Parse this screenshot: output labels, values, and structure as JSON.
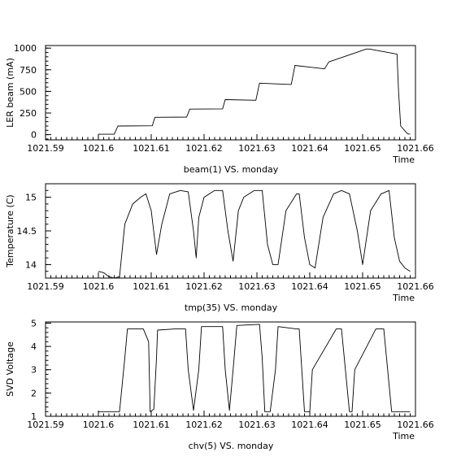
{
  "chart_data": [
    {
      "type": "line",
      "ylabel": "LER beam (mA)",
      "xlabel": "beam(1) VS. monday",
      "xlabel_right": "Time",
      "xlim": [
        1021.59,
        1021.66
      ],
      "ylim": [
        -60,
        1030
      ],
      "xticks": [
        1021.59,
        1021.6,
        1021.61,
        1021.62,
        1021.63,
        1021.64,
        1021.65,
        1021.66
      ],
      "xtick_labels": [
        "1021.59",
        "1021.6",
        "1021.61",
        "1021.62",
        "1021.63",
        "1021.64",
        "1021.65",
        "1021.66"
      ],
      "yticks": [
        0,
        250,
        500,
        750,
        1000
      ],
      "ytick_labels": [
        "0",
        "250",
        "500",
        "750",
        "1000"
      ],
      "series": [
        {
          "x": [
            1021.6,
            1021.603,
            1021.6037,
            1021.6102,
            1021.6107,
            1021.6167,
            1021.6173,
            1021.6235,
            1021.624,
            1021.6298,
            1021.6305,
            1021.6365,
            1021.6372,
            1021.6428,
            1021.6436,
            1021.6507,
            1021.6513,
            1021.6565,
            1021.6568,
            1021.6572,
            1021.6585,
            1021.659
          ],
          "y": [
            5,
            5,
            100,
            103,
            200,
            203,
            295,
            298,
            405,
            398,
            595,
            580,
            800,
            760,
            840,
            990,
            990,
            930,
            500,
            100,
            10,
            5
          ]
        }
      ]
    },
    {
      "type": "line",
      "ylabel": "Temperature (C)",
      "xlabel": "tmp(35) VS. monday",
      "xlabel_right": "Time",
      "xlim": [
        1021.59,
        1021.66
      ],
      "ylim": [
        13.8,
        15.2
      ],
      "xticks": [
        1021.59,
        1021.6,
        1021.61,
        1021.62,
        1021.63,
        1021.64,
        1021.65,
        1021.66
      ],
      "xtick_labels": [
        "1021.59",
        "1021.6",
        "1021.61",
        "1021.62",
        "1021.63",
        "1021.64",
        "1021.65",
        "1021.66"
      ],
      "yticks": [
        14,
        14.5,
        15
      ],
      "ytick_labels": [
        "14",
        "14.5",
        "15"
      ],
      "series": [
        {
          "x": [
            1021.6,
            1021.601,
            1021.602,
            1021.603,
            1021.604,
            1021.605,
            1021.6065,
            1021.608,
            1021.609,
            1021.61,
            1021.611,
            1021.612,
            1021.6135,
            1021.6155,
            1021.617,
            1021.618,
            1021.6185,
            1021.619,
            1021.62,
            1021.622,
            1021.6235,
            1021.6245,
            1021.6255,
            1021.6265,
            1021.6275,
            1021.6295,
            1021.631,
            1021.632,
            1021.633,
            1021.634,
            1021.6355,
            1021.6375,
            1021.638,
            1021.639,
            1021.64,
            1021.641,
            1021.6425,
            1021.6445,
            1021.646,
            1021.6475,
            1021.649,
            1021.65,
            1021.6515,
            1021.6535,
            1021.655,
            1021.656,
            1021.657,
            1021.658,
            1021.659
          ],
          "y": [
            13.9,
            13.88,
            13.82,
            13.8,
            13.82,
            14.6,
            14.9,
            15.0,
            15.05,
            14.8,
            14.15,
            14.6,
            15.05,
            15.1,
            15.08,
            14.5,
            14.1,
            14.7,
            15.0,
            15.1,
            15.1,
            14.5,
            14.05,
            14.8,
            15.0,
            15.1,
            15.1,
            14.3,
            14.0,
            14.0,
            14.8,
            15.05,
            15.05,
            14.4,
            14.0,
            13.95,
            14.7,
            15.05,
            15.1,
            15.05,
            14.5,
            14.0,
            14.8,
            15.05,
            15.1,
            14.4,
            14.05,
            13.95,
            13.9
          ]
        }
      ]
    },
    {
      "type": "line",
      "ylabel": "SVD Voltage",
      "xlabel": "chv(5) VS. monday",
      "xlabel_right": "Time",
      "xlim": [
        1021.59,
        1021.66
      ],
      "ylim": [
        1,
        5.05
      ],
      "xticks": [
        1021.59,
        1021.6,
        1021.61,
        1021.62,
        1021.63,
        1021.64,
        1021.65,
        1021.66
      ],
      "xtick_labels": [
        "1021.59",
        "1021.6",
        "1021.61",
        "1021.62",
        "1021.63",
        "1021.64",
        "1021.65",
        "1021.66"
      ],
      "yticks": [
        1,
        2,
        3,
        4,
        5
      ],
      "ytick_labels": [
        "1",
        "2",
        "3",
        "4",
        "5"
      ],
      "series": [
        {
          "x": [
            1021.6,
            1021.604,
            1021.605,
            1021.6055,
            1021.6085,
            1021.6095,
            1021.6098,
            1021.6105,
            1021.611,
            1021.6112,
            1021.6145,
            1021.6165,
            1021.617,
            1021.618,
            1021.619,
            1021.6195,
            1021.6225,
            1021.6235,
            1021.624,
            1021.6248,
            1021.6255,
            1021.6262,
            1021.6305,
            1021.631,
            1021.6315,
            1021.6325,
            1021.6335,
            1021.634,
            1021.6375,
            1021.638,
            1021.639,
            1021.64,
            1021.6405,
            1021.645,
            1021.6455,
            1021.646,
            1021.6475,
            1021.648,
            1021.6485,
            1021.6525,
            1021.6535,
            1021.654,
            1021.6555,
            1021.659
          ],
          "y": [
            1.2,
            1.2,
            3.5,
            4.75,
            4.75,
            4.2,
            1.2,
            1.3,
            3.5,
            4.7,
            4.75,
            4.75,
            3.0,
            1.25,
            3.0,
            4.85,
            4.85,
            4.85,
            3.0,
            1.25,
            3.0,
            4.9,
            4.95,
            3.5,
            1.2,
            1.2,
            3.0,
            4.85,
            4.75,
            4.75,
            1.2,
            1.2,
            3.0,
            4.75,
            4.75,
            4.75,
            1.2,
            1.2,
            3.0,
            4.75,
            4.75,
            4.75,
            1.2,
            1.2
          ]
        }
      ]
    }
  ]
}
